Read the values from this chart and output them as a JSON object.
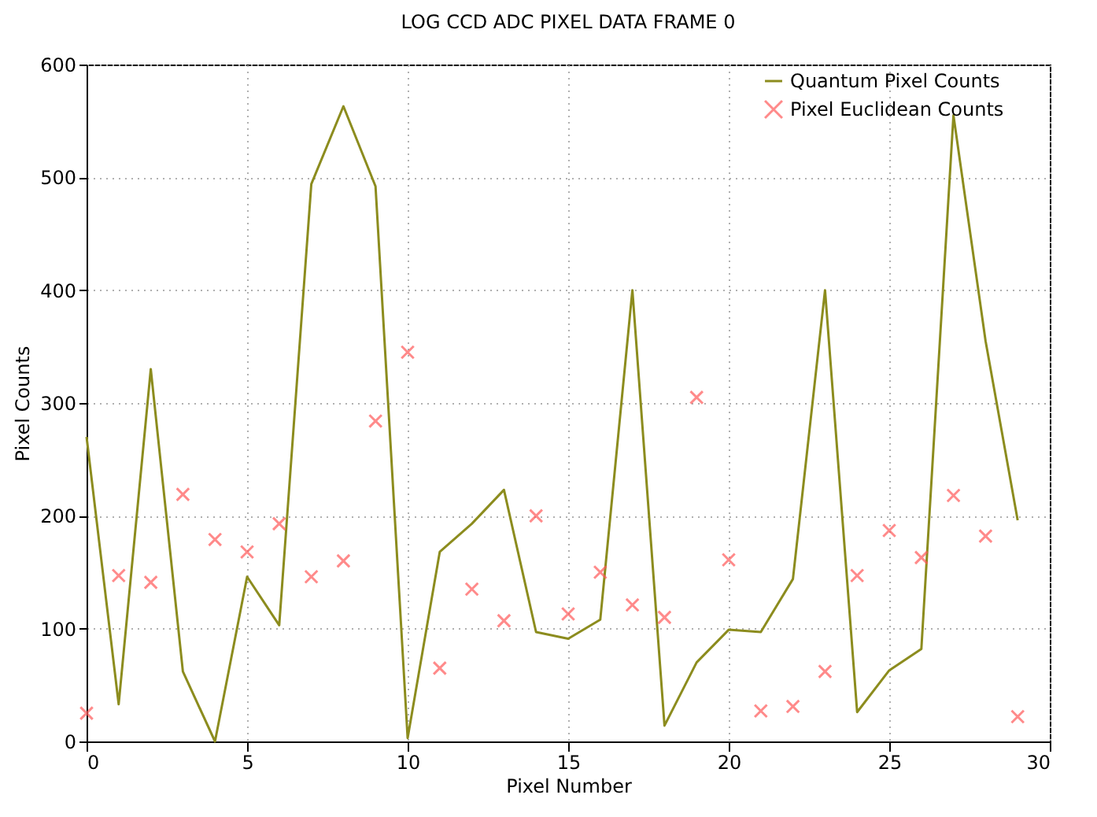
{
  "chart_data": {
    "type": "line",
    "title": "LOG CCD ADC PIXEL DATA FRAME 0",
    "xlabel": "Pixel Number",
    "ylabel": "Pixel Counts",
    "x": [
      0,
      1,
      2,
      3,
      4,
      5,
      6,
      7,
      8,
      9,
      10,
      11,
      12,
      13,
      14,
      15,
      16,
      17,
      18,
      19,
      20,
      21,
      22,
      23,
      24,
      25,
      26,
      27,
      28,
      29
    ],
    "series": [
      {
        "name": "Quantum Pixel Counts",
        "type": "line",
        "color": "#8c8c1e",
        "values": [
          270,
          33,
          330,
          62,
          0,
          146,
          103,
          494,
          563,
          492,
          3,
          168,
          193,
          223,
          97,
          91,
          108,
          400,
          14,
          70,
          99,
          97,
          144,
          400,
          26,
          63,
          82,
          555,
          355,
          196
        ]
      },
      {
        "name": "Pixel Euclidean Counts",
        "type": "scatter",
        "marker": "cross",
        "color": "#ff5a5a",
        "values": [
          25,
          147,
          141,
          219,
          179,
          168,
          193,
          146,
          160,
          284,
          345,
          65,
          135,
          107,
          200,
          113,
          150,
          121,
          110,
          305,
          161,
          27,
          31,
          62,
          147,
          187,
          163,
          218,
          182,
          22
        ]
      }
    ],
    "xlim": [
      0,
      30
    ],
    "xticks": [
      0,
      5,
      10,
      15,
      20,
      25,
      30
    ],
    "ylim": [
      0,
      600
    ],
    "yticks": [
      0,
      100,
      200,
      300,
      400,
      500,
      600
    ],
    "grid": true,
    "legend": "top right"
  }
}
